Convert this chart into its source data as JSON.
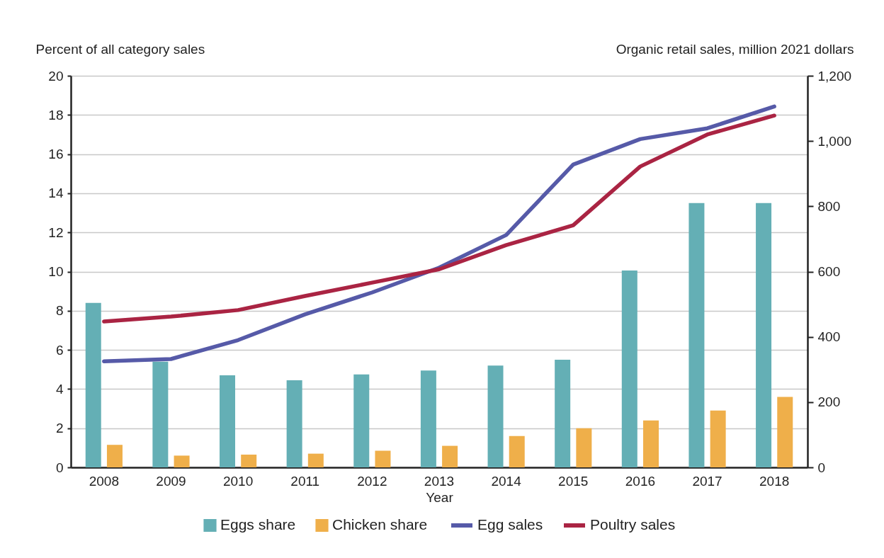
{
  "chart_data": {
    "type": "bar",
    "xlabel": "Year",
    "ylabel": "Percent of all category sales",
    "y2label": "Organic retail sales, million 2021 dollars",
    "categories": [
      "2008",
      "2009",
      "2010",
      "2011",
      "2012",
      "2013",
      "2014",
      "2015",
      "2016",
      "2017",
      "2018"
    ],
    "series": [
      {
        "name": "Eggs share",
        "color": "#64afb5",
        "values": [
          8.4,
          5.4,
          4.7,
          4.45,
          4.75,
          4.95,
          5.2,
          5.5,
          10.05,
          13.5,
          13.5
        ]
      },
      {
        "name": "Chicken share",
        "color": "#efaf4a",
        "values": [
          1.15,
          0.6,
          0.65,
          0.7,
          0.85,
          1.1,
          1.6,
          2.0,
          2.4,
          2.9,
          3.6
        ]
      },
      {
        "name": "Egg sales",
        "type": "line",
        "axis": "y2",
        "color": "#565aa8",
        "values": [
          325,
          332,
          390,
          469,
          536,
          612,
          712,
          928,
          1006,
          1039,
          1106
        ]
      },
      {
        "name": "Poultry sales",
        "type": "line",
        "axis": "y2",
        "color": "#aa2443",
        "values": [
          447,
          462,
          482,
          525,
          566,
          607,
          681,
          742,
          922,
          1020,
          1078
        ]
      }
    ],
    "ylim": [
      0,
      20
    ],
    "yticks": [
      0,
      2,
      4,
      6,
      8,
      10,
      12,
      14,
      16,
      18,
      20
    ],
    "y2lim": [
      0,
      1200
    ],
    "y2ticks": [
      0,
      200,
      400,
      600,
      800,
      {
        "value": 1000,
        "label": "1,000"
      },
      {
        "value": 1200,
        "label": "1,200"
      }
    ],
    "grid": "y",
    "legend": "bottom"
  }
}
